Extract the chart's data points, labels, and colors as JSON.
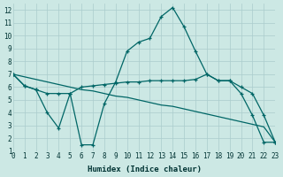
{
  "xlabel": "Humidex (Indice chaleur)",
  "xlim": [
    0,
    23
  ],
  "ylim": [
    1,
    12.5
  ],
  "xticks": [
    0,
    1,
    2,
    3,
    4,
    5,
    6,
    7,
    8,
    9,
    10,
    11,
    12,
    13,
    14,
    15,
    16,
    17,
    18,
    19,
    20,
    21,
    22,
    23
  ],
  "yticks": [
    1,
    2,
    3,
    4,
    5,
    6,
    7,
    8,
    9,
    10,
    11,
    12
  ],
  "bg_color": "#cce8e4",
  "grid_color": "#aacccc",
  "line_color": "#006666",
  "curve_x": [
    0,
    1,
    2,
    3,
    4,
    5,
    6,
    7,
    8,
    9,
    10,
    11,
    12,
    13,
    14,
    15,
    16,
    17,
    18,
    19,
    20,
    21,
    22,
    23
  ],
  "curve_y": [
    7.0,
    6.1,
    5.8,
    4.0,
    2.8,
    5.5,
    1.5,
    1.5,
    4.7,
    6.4,
    8.8,
    9.5,
    9.8,
    11.5,
    12.2,
    10.7,
    8.8,
    7.0,
    6.5,
    6.5,
    5.5,
    3.8,
    1.7,
    1.7
  ],
  "flat1_x": [
    0,
    1,
    2,
    3,
    4,
    5,
    6,
    7,
    8,
    9,
    10,
    11,
    12,
    13,
    14,
    15,
    16,
    17,
    18,
    19,
    20,
    21,
    22,
    23
  ],
  "flat1_y": [
    7.0,
    6.1,
    5.8,
    5.5,
    5.5,
    5.5,
    6.0,
    6.1,
    6.2,
    6.3,
    6.4,
    6.4,
    6.5,
    6.5,
    6.5,
    6.5,
    6.6,
    7.0,
    6.5,
    6.5,
    6.0,
    5.5,
    3.8,
    1.7
  ],
  "diag_x": [
    0,
    1,
    2,
    3,
    4,
    5,
    6,
    7,
    8,
    9,
    10,
    11,
    12,
    13,
    14,
    15,
    16,
    17,
    18,
    19,
    20,
    21,
    22,
    23
  ],
  "diag_y": [
    7.0,
    6.8,
    6.6,
    6.4,
    6.2,
    6.0,
    5.8,
    5.7,
    5.5,
    5.3,
    5.2,
    5.0,
    4.8,
    4.6,
    4.5,
    4.3,
    4.1,
    3.9,
    3.7,
    3.5,
    3.3,
    3.1,
    2.9,
    1.7
  ]
}
